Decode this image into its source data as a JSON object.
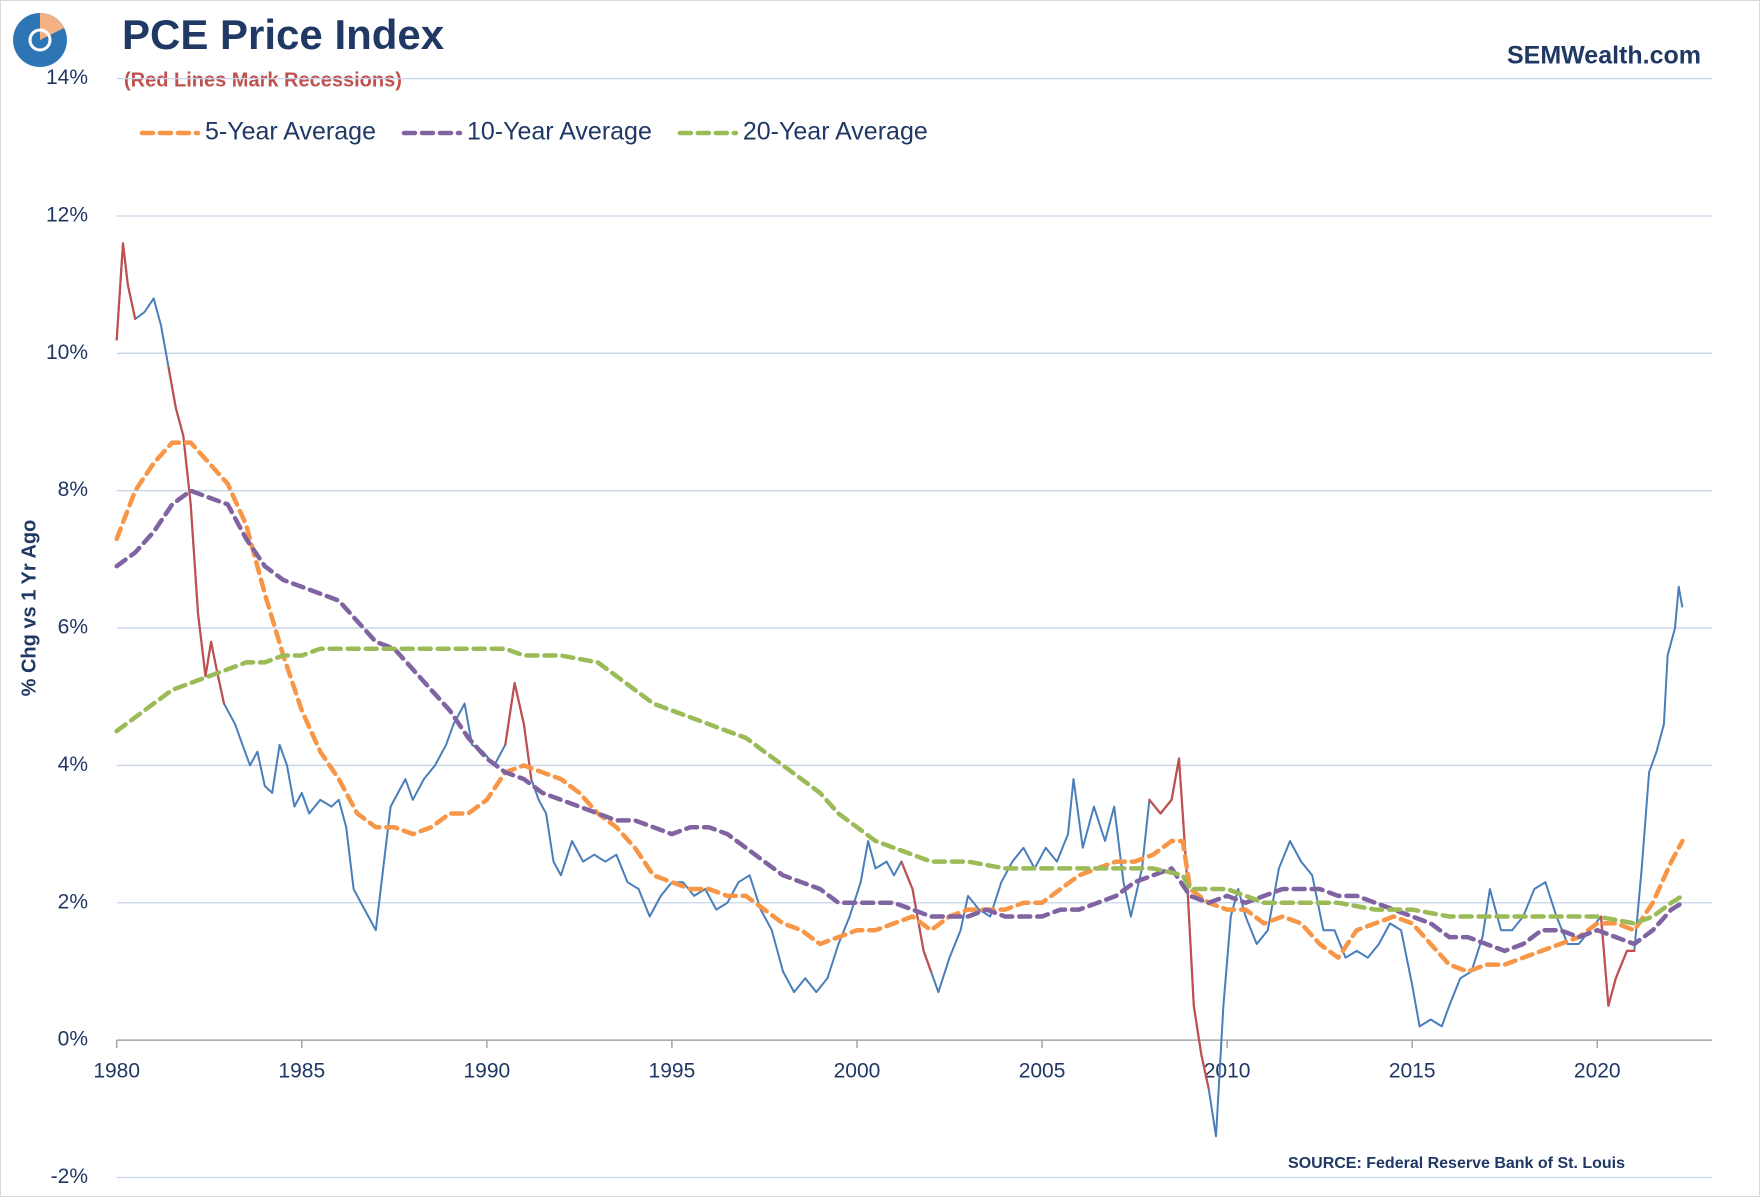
{
  "chart_data": {
    "type": "line",
    "title": "PCE Price Index",
    "subtitle": "(Red Lines Mark Recessions)",
    "brand": "SEMWealth.com",
    "source": "SOURCE:  Federal Reserve Bank of St. Louis",
    "y_label": "% Chg vs 1 Yr Ago",
    "xlim": [
      1980,
      2023.1
    ],
    "xticks": [
      1980,
      1985,
      1990,
      1995,
      2000,
      2005,
      2010,
      2015,
      2020
    ],
    "ylim": [
      -2,
      14
    ],
    "yticks": [
      {
        "value": -2,
        "label": "-2%"
      },
      {
        "value": 0,
        "label": "0%"
      },
      {
        "value": 2,
        "label": "2%"
      },
      {
        "value": 4,
        "label": "4%"
      },
      {
        "value": 6,
        "label": "6%"
      },
      {
        "value": 8,
        "label": "8%"
      },
      {
        "value": 10,
        "label": "10%"
      },
      {
        "value": 12,
        "label": "12%"
      },
      {
        "value": 14,
        "label": "14%"
      }
    ],
    "grid": true,
    "legend": "top-left",
    "recession_color": "#c0504d",
    "recessions": [
      [
        1980.0,
        1980.6
      ],
      [
        1981.5,
        1982.9
      ],
      [
        1990.55,
        1991.2
      ],
      [
        2001.2,
        2001.9
      ],
      [
        2007.95,
        2009.5
      ],
      [
        2020.1,
        2020.9
      ]
    ],
    "series": [
      {
        "color": "#4a7ebb",
        "dashed": false,
        "x": [
          1980.0,
          1980.17,
          1980.3,
          1980.5,
          1980.75,
          1981.0,
          1981.2,
          1981.4,
          1981.6,
          1981.8,
          1982.0,
          1982.2,
          1982.4,
          1982.55,
          1982.7,
          1982.9,
          1983.2,
          1983.4,
          1983.6,
          1983.8,
          1984.0,
          1984.2,
          1984.4,
          1984.6,
          1984.8,
          1985.0,
          1985.2,
          1985.5,
          1985.8,
          1986.0,
          1986.2,
          1986.4,
          1986.6,
          1986.8,
          1987.0,
          1987.2,
          1987.4,
          1987.6,
          1987.8,
          1988.0,
          1988.3,
          1988.6,
          1988.9,
          1989.1,
          1989.4,
          1989.6,
          1989.9,
          1990.2,
          1990.5,
          1990.75,
          1991.0,
          1991.2,
          1991.4,
          1991.6,
          1991.8,
          1992.0,
          1992.3,
          1992.6,
          1992.9,
          1993.2,
          1993.5,
          1993.8,
          1994.1,
          1994.4,
          1994.7,
          1995.0,
          1995.3,
          1995.6,
          1995.9,
          1996.2,
          1996.5,
          1996.8,
          1997.1,
          1997.4,
          1997.7,
          1998.0,
          1998.3,
          1998.6,
          1998.9,
          1999.2,
          1999.5,
          1999.8,
          2000.1,
          2000.3,
          2000.5,
          2000.8,
          2001.0,
          2001.2,
          2001.5,
          2001.8,
          2002.0,
          2002.2,
          2002.5,
          2002.8,
          2003.0,
          2003.3,
          2003.6,
          2003.9,
          2004.2,
          2004.5,
          2004.8,
          2005.1,
          2005.4,
          2005.7,
          2005.85,
          2006.1,
          2006.4,
          2006.7,
          2006.95,
          2007.2,
          2007.4,
          2007.7,
          2007.9,
          2008.2,
          2008.5,
          2008.7,
          2008.9,
          2009.1,
          2009.3,
          2009.5,
          2009.7,
          2009.9,
          2010.1,
          2010.3,
          2010.5,
          2010.8,
          2011.1,
          2011.4,
          2011.7,
          2012.0,
          2012.3,
          2012.6,
          2012.9,
          2013.2,
          2013.5,
          2013.8,
          2014.1,
          2014.4,
          2014.7,
          2015.0,
          2015.2,
          2015.5,
          2015.8,
          2016.0,
          2016.3,
          2016.6,
          2016.9,
          2017.1,
          2017.4,
          2017.7,
          2018.0,
          2018.3,
          2018.6,
          2018.9,
          2019.2,
          2019.5,
          2019.8,
          2020.1,
          2020.3,
          2020.5,
          2020.8,
          2021.0,
          2021.2,
          2021.4,
          2021.6,
          2021.8,
          2021.9,
          2022.1,
          2022.2,
          2022.3
        ],
        "values": [
          10.2,
          11.6,
          11.0,
          10.5,
          10.6,
          10.8,
          10.4,
          9.8,
          9.2,
          8.8,
          7.8,
          6.2,
          5.3,
          5.8,
          5.4,
          4.9,
          4.6,
          4.3,
          4.0,
          4.2,
          3.7,
          3.6,
          4.3,
          4.0,
          3.4,
          3.6,
          3.3,
          3.5,
          3.4,
          3.5,
          3.1,
          2.2,
          2.0,
          1.8,
          1.6,
          2.5,
          3.4,
          3.6,
          3.8,
          3.5,
          3.8,
          4.0,
          4.3,
          4.6,
          4.9,
          4.3,
          4.2,
          4.0,
          4.3,
          5.2,
          4.6,
          3.8,
          3.5,
          3.3,
          2.6,
          2.4,
          2.9,
          2.6,
          2.7,
          2.6,
          2.7,
          2.3,
          2.2,
          1.8,
          2.1,
          2.3,
          2.3,
          2.1,
          2.2,
          1.9,
          2.0,
          2.3,
          2.4,
          1.9,
          1.6,
          1.0,
          0.7,
          0.9,
          0.7,
          0.9,
          1.4,
          1.8,
          2.3,
          2.9,
          2.5,
          2.6,
          2.4,
          2.6,
          2.2,
          1.3,
          1.0,
          0.7,
          1.2,
          1.6,
          2.1,
          1.9,
          1.8,
          2.3,
          2.6,
          2.8,
          2.5,
          2.8,
          2.6,
          3.0,
          3.8,
          2.8,
          3.4,
          2.9,
          3.4,
          2.3,
          1.8,
          2.5,
          3.5,
          3.3,
          3.5,
          4.1,
          2.5,
          0.5,
          -0.2,
          -0.7,
          -1.4,
          0.5,
          1.8,
          2.2,
          1.8,
          1.4,
          1.6,
          2.5,
          2.9,
          2.6,
          2.4,
          1.6,
          1.6,
          1.2,
          1.3,
          1.2,
          1.4,
          1.7,
          1.6,
          0.8,
          0.2,
          0.3,
          0.2,
          0.5,
          0.9,
          1.0,
          1.5,
          2.2,
          1.6,
          1.6,
          1.8,
          2.2,
          2.3,
          1.8,
          1.4,
          1.4,
          1.6,
          1.8,
          0.5,
          0.9,
          1.3,
          1.3,
          2.5,
          3.9,
          4.2,
          4.6,
          5.6,
          6.0,
          6.6,
          6.3
        ]
      },
      {
        "name": "5-Year Average",
        "color": "#f79646",
        "dashed": true,
        "x": [
          1980,
          1980.5,
          1981,
          1981.5,
          1982,
          1982.5,
          1983,
          1983.5,
          1984,
          1984.5,
          1985,
          1985.5,
          1986,
          1986.5,
          1987,
          1987.5,
          1988,
          1988.5,
          1989,
          1989.5,
          1990,
          1990.5,
          1991,
          1991.5,
          1992,
          1992.5,
          1993,
          1993.5,
          1994,
          1994.5,
          1995,
          1995.5,
          1996,
          1996.5,
          1997,
          1997.5,
          1998,
          1998.5,
          1999,
          1999.5,
          2000,
          2000.5,
          2001,
          2001.5,
          2002,
          2002.5,
          2003,
          2003.5,
          2004,
          2004.5,
          2005,
          2005.5,
          2006,
          2006.5,
          2007,
          2007.5,
          2008,
          2008.5,
          2008.8,
          2009,
          2009.5,
          2010,
          2010.5,
          2011,
          2011.5,
          2012,
          2012.5,
          2013,
          2013.5,
          2014,
          2014.5,
          2015,
          2015.5,
          2016,
          2016.5,
          2017,
          2017.5,
          2018,
          2018.5,
          2019,
          2019.5,
          2020,
          2020.5,
          2021,
          2021.5,
          2022,
          2022.3
        ],
        "values": [
          7.3,
          8.0,
          8.4,
          8.7,
          8.7,
          8.4,
          8.1,
          7.5,
          6.5,
          5.6,
          4.8,
          4.2,
          3.8,
          3.3,
          3.1,
          3.1,
          3.0,
          3.1,
          3.3,
          3.3,
          3.5,
          3.9,
          4.0,
          3.9,
          3.8,
          3.6,
          3.3,
          3.1,
          2.8,
          2.4,
          2.3,
          2.2,
          2.2,
          2.1,
          2.1,
          1.9,
          1.7,
          1.6,
          1.4,
          1.5,
          1.6,
          1.6,
          1.7,
          1.8,
          1.6,
          1.8,
          1.9,
          1.9,
          1.9,
          2.0,
          2.0,
          2.2,
          2.4,
          2.5,
          2.6,
          2.6,
          2.7,
          2.9,
          2.9,
          2.2,
          2.0,
          1.9,
          1.9,
          1.7,
          1.8,
          1.7,
          1.4,
          1.2,
          1.6,
          1.7,
          1.8,
          1.7,
          1.4,
          1.1,
          1.0,
          1.1,
          1.1,
          1.2,
          1.3,
          1.4,
          1.5,
          1.7,
          1.7,
          1.6,
          2.0,
          2.6,
          2.9
        ]
      },
      {
        "name": "10-Year Average",
        "color": "#8064a2",
        "dashed": true,
        "x": [
          1980,
          1980.5,
          1981,
          1981.5,
          1982,
          1982.5,
          1983,
          1983.5,
          1984,
          1984.5,
          1985,
          1985.5,
          1986,
          1986.5,
          1987,
          1987.5,
          1988,
          1988.5,
          1989,
          1989.5,
          1990,
          1990.5,
          1991,
          1991.5,
          1992,
          1992.5,
          1993,
          1993.5,
          1994,
          1994.5,
          1995,
          1995.5,
          1996,
          1996.5,
          1997,
          1997.5,
          1998,
          1998.5,
          1999,
          1999.5,
          2000,
          2000.5,
          2001,
          2001.5,
          2002,
          2002.5,
          2003,
          2003.5,
          2004,
          2004.5,
          2005,
          2005.5,
          2006,
          2006.5,
          2007,
          2007.5,
          2008,
          2008.5,
          2009,
          2009.5,
          2010,
          2010.5,
          2011,
          2011.5,
          2012,
          2012.5,
          2013,
          2013.5,
          2014,
          2014.5,
          2015,
          2015.5,
          2016,
          2016.5,
          2017,
          2017.5,
          2018,
          2018.5,
          2019,
          2019.5,
          2020,
          2020.5,
          2021,
          2021.5,
          2022,
          2022.3
        ],
        "values": [
          6.9,
          7.1,
          7.4,
          7.8,
          8.0,
          7.9,
          7.8,
          7.3,
          6.9,
          6.7,
          6.6,
          6.5,
          6.4,
          6.1,
          5.8,
          5.7,
          5.4,
          5.1,
          4.8,
          4.4,
          4.1,
          3.9,
          3.8,
          3.6,
          3.5,
          3.4,
          3.3,
          3.2,
          3.2,
          3.1,
          3.0,
          3.1,
          3.1,
          3.0,
          2.8,
          2.6,
          2.4,
          2.3,
          2.2,
          2.0,
          2.0,
          2.0,
          2.0,
          1.9,
          1.8,
          1.8,
          1.8,
          1.9,
          1.8,
          1.8,
          1.8,
          1.9,
          1.9,
          2.0,
          2.1,
          2.3,
          2.4,
          2.5,
          2.1,
          2.0,
          2.1,
          2.0,
          2.1,
          2.2,
          2.2,
          2.2,
          2.1,
          2.1,
          2.0,
          1.9,
          1.8,
          1.7,
          1.5,
          1.5,
          1.4,
          1.3,
          1.4,
          1.6,
          1.6,
          1.5,
          1.6,
          1.5,
          1.4,
          1.6,
          1.9,
          2.0
        ]
      },
      {
        "name": "20-Year Average",
        "color": "#9bbb59",
        "dashed": true,
        "x": [
          1980,
          1980.5,
          1981,
          1981.5,
          1982,
          1982.5,
          1983,
          1983.5,
          1984,
          1984.5,
          1985,
          1985.5,
          1986,
          1986.5,
          1987,
          1988,
          1989,
          1990,
          1990.5,
          1991,
          1992,
          1993,
          1993.5,
          1994,
          1994.5,
          1995,
          1995.5,
          1996,
          1996.5,
          1997,
          1997.5,
          1998,
          1998.5,
          1999,
          1999.5,
          2000,
          2000.5,
          2001,
          2001.5,
          2002,
          2003,
          2004,
          2005,
          2006,
          2007,
          2008,
          2008.8,
          2009,
          2010,
          2011,
          2012,
          2013,
          2014,
          2015,
          2016,
          2017,
          2018,
          2019,
          2020,
          2021,
          2021.5,
          2022,
          2022.3
        ],
        "values": [
          4.5,
          4.7,
          4.9,
          5.1,
          5.2,
          5.3,
          5.4,
          5.5,
          5.5,
          5.6,
          5.6,
          5.7,
          5.7,
          5.7,
          5.7,
          5.7,
          5.7,
          5.7,
          5.7,
          5.6,
          5.6,
          5.5,
          5.3,
          5.1,
          4.9,
          4.8,
          4.7,
          4.6,
          4.5,
          4.4,
          4.2,
          4.0,
          3.8,
          3.6,
          3.3,
          3.1,
          2.9,
          2.8,
          2.7,
          2.6,
          2.6,
          2.5,
          2.5,
          2.5,
          2.5,
          2.5,
          2.4,
          2.2,
          2.2,
          2.0,
          2.0,
          2.0,
          1.9,
          1.9,
          1.8,
          1.8,
          1.8,
          1.8,
          1.8,
          1.7,
          1.8,
          2.0,
          2.1
        ]
      }
    ]
  }
}
